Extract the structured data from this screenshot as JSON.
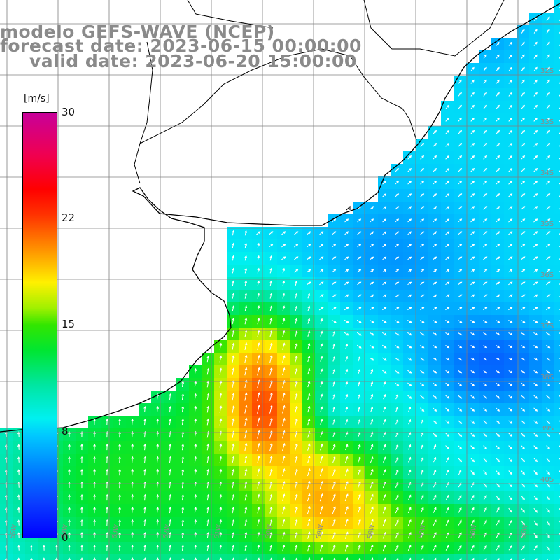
{
  "title": {
    "line1": "modelo GEFS-WAVE (NCEP)",
    "line2": "forecast date: 2023-06-15 00:00:00",
    "line3": "valid date: 2023-06-20 15:00:00"
  },
  "colorbar": {
    "unit": "[m/s]",
    "ticks": [
      "30",
      "22",
      "15",
      "8",
      "0"
    ],
    "min": 0,
    "max": 30,
    "colors": [
      "#0000ff",
      "#0080ff",
      "#00e6ff",
      "#00e632",
      "#32e600",
      "#fff000",
      "#ff7800",
      "#ff0000",
      "#c8009a"
    ]
  },
  "lat_labels": [
    "32S",
    "33S",
    "34S",
    "35S",
    "36S",
    "37S",
    "38S",
    "39S",
    "40S"
  ],
  "lon_labels": [
    "65W",
    "64W",
    "63W",
    "62W",
    "61W",
    "60W",
    "59W",
    "58W",
    "57W",
    "56W",
    "55W"
  ],
  "colors": {
    "coast": "#000000",
    "grid": "#808080",
    "arrow": "#ffffff",
    "title": "#8a8a8a"
  }
}
